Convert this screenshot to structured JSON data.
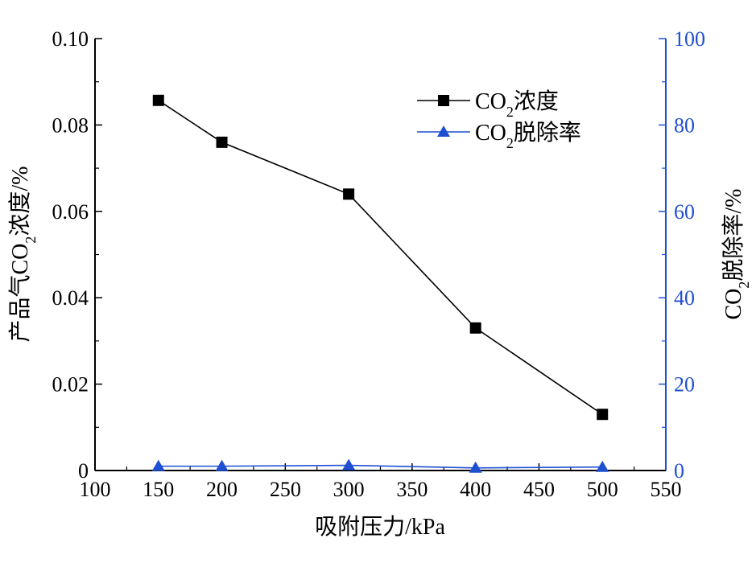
{
  "chart_data": {
    "type": "line",
    "xlabel": "吸附压力/kPa",
    "ylabel_left": {
      "pre": "产品气CO",
      "sub": "2",
      "post": "浓度/%"
    },
    "ylabel_right": {
      "pre": "CO",
      "sub": "2",
      "post": "脱除率/%"
    },
    "xlim": [
      100,
      550
    ],
    "xticks": [
      100,
      150,
      200,
      250,
      300,
      350,
      400,
      450,
      500,
      550
    ],
    "ylim_left": [
      0,
      0.1
    ],
    "yticks_left": [
      "0",
      "0.02",
      "0.04",
      "0.06",
      "0.08",
      "0.10"
    ],
    "ylim_right": [
      0,
      100
    ],
    "yticks_right": [
      "0",
      "20",
      "40",
      "60",
      "80",
      "100"
    ],
    "legend_position": "top-right",
    "colors": {
      "axis_left": "#000000",
      "axis_right": "#1f4fd1",
      "series1": "#000000",
      "series2": "#1f4fd1"
    },
    "series": [
      {
        "name": {
          "pre": "CO",
          "sub": "2",
          "post": "浓度"
        },
        "axis": "left",
        "marker": "square",
        "x": [
          150,
          200,
          300,
          400,
          500
        ],
        "y": [
          0.0857,
          0.076,
          0.064,
          0.033,
          0.013
        ]
      },
      {
        "name": {
          "pre": "CO",
          "sub": "2",
          "post": "脱除率"
        },
        "axis": "right",
        "marker": "triangle",
        "x": [
          150,
          200,
          300,
          400,
          500
        ],
        "y": [
          1.0,
          1.0,
          1.2,
          0.6,
          0.8
        ]
      }
    ]
  }
}
